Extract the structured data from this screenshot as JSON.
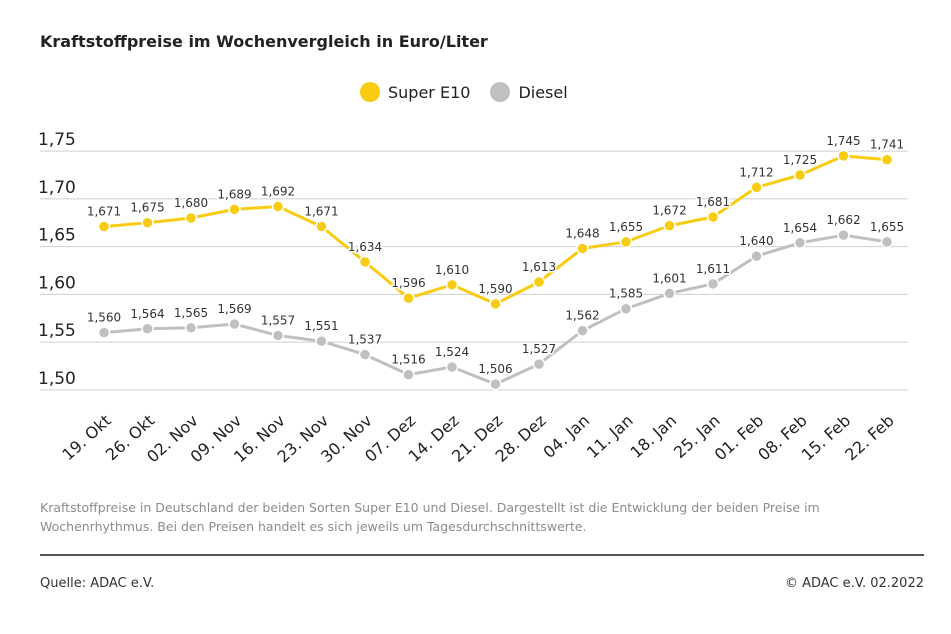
{
  "title": "Kraftstoffpreise im Wochenvergleich in Euro/Liter",
  "description": "Kraftstoffpreise in Deutschland der beiden Sorten Super E10 und Diesel. Dargestellt ist die Entwicklung der beiden Preise im Wochenrhythmus. Bei den Preisen handelt es sich jeweils um Tagesdurchschnittswerte.",
  "source": "Quelle: ADAC e.V.",
  "copyright": "© ADAC e.V. 02.2022",
  "colors": {
    "super": "#f7cc13",
    "diesel": "#c0c0c0",
    "grid": "#cfcfcf"
  },
  "chart_data": {
    "type": "line",
    "title": "Kraftstoffpreise im Wochenvergleich in Euro/Liter",
    "xlabel": "",
    "ylabel": "",
    "ylim": [
      1.48,
      1.77
    ],
    "yticks": [
      1.5,
      1.55,
      1.6,
      1.65,
      1.7,
      1.75
    ],
    "ytick_labels": [
      "1,50",
      "1,55",
      "1,60",
      "1,65",
      "1,70",
      "1,75"
    ],
    "grid": true,
    "legend": "top-center",
    "categories": [
      "19. Okt",
      "26. Okt",
      "02. Nov",
      "09. Nov",
      "16. Nov",
      "23. Nov",
      "30. Nov",
      "07. Dez",
      "14. Dez",
      "21. Dez",
      "28. Dez",
      "04. Jan",
      "11. Jan",
      "18. Jan",
      "25. Jan",
      "01. Feb",
      "08. Feb",
      "15. Feb",
      "22. Feb"
    ],
    "series": [
      {
        "name": "Super E10",
        "color": "#f7cc13",
        "values": [
          1.671,
          1.675,
          1.68,
          1.689,
          1.692,
          1.671,
          1.634,
          1.596,
          1.61,
          1.59,
          1.613,
          1.648,
          1.655,
          1.672,
          1.681,
          1.712,
          1.725,
          1.745,
          1.741
        ],
        "labels": [
          "1,671",
          "1,675",
          "1,680",
          "1,689",
          "1,692",
          "1,671",
          "1,634",
          "1,596",
          "1,610",
          "1,590",
          "1,613",
          "1,648",
          "1,655",
          "1,672",
          "1,681",
          "1,712",
          "1,725",
          "1,745",
          "1,741"
        ]
      },
      {
        "name": "Diesel",
        "color": "#c0c0c0",
        "values": [
          1.56,
          1.564,
          1.565,
          1.569,
          1.557,
          1.551,
          1.537,
          1.516,
          1.524,
          1.506,
          1.527,
          1.562,
          1.585,
          1.601,
          1.611,
          1.64,
          1.654,
          1.662,
          1.655
        ],
        "labels": [
          "1,560",
          "1,564",
          "1,565",
          "1,569",
          "1,557",
          "1,551",
          "1,537",
          "1,516",
          "1,524",
          "1,506",
          "1,527",
          "1,562",
          "1,585",
          "1,601",
          "1,611",
          "1,640",
          "1,654",
          "1,662",
          "1,655"
        ]
      }
    ]
  }
}
